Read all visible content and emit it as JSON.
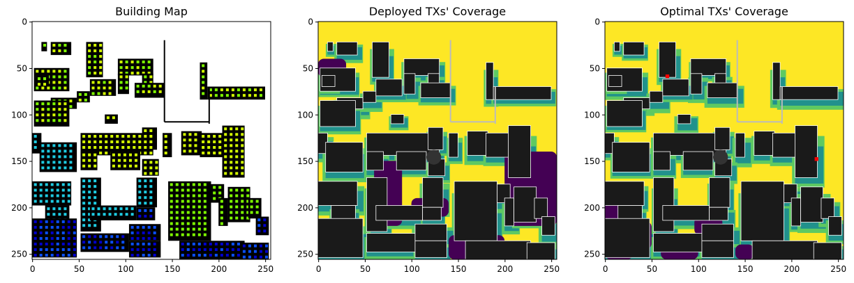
{
  "chart_data": [
    {
      "type": "heatmap",
      "title": "Building Map",
      "xticks": [
        "0",
        "50",
        "100",
        "150",
        "200",
        "250"
      ],
      "yticks": [
        "0",
        "50",
        "100",
        "150",
        "200",
        "250"
      ],
      "xlim": [
        0,
        255
      ],
      "ylim": [
        255,
        0
      ],
      "image_size": [
        256,
        256
      ],
      "background": "#ffffff",
      "building_color": "#000000",
      "tx_marker_colors": [
        "#7fff00",
        "#d4ff00",
        "#1ecbe1",
        "#0a4fff",
        "#0000cc"
      ]
    },
    {
      "type": "heatmap",
      "title": "Deployed TXs' Coverage",
      "xticks": [
        "0",
        "50",
        "100",
        "150",
        "200",
        "250"
      ],
      "yticks": [
        "0",
        "50",
        "100",
        "150",
        "200",
        "250"
      ],
      "xlim": [
        0,
        255
      ],
      "ylim": [
        255,
        0
      ],
      "image_size": [
        256,
        256
      ],
      "colormap": [
        "#440154",
        "#21918c",
        "#5ec962",
        "#fde725"
      ],
      "building_color": "#1a1a1a"
    },
    {
      "type": "heatmap",
      "title": "Optimal TXs' Coverage",
      "xticks": [
        "0",
        "50",
        "100",
        "150",
        "200",
        "250"
      ],
      "yticks": [
        "0",
        "50",
        "100",
        "150",
        "200",
        "250"
      ],
      "xlim": [
        0,
        255
      ],
      "ylim": [
        255,
        0
      ],
      "image_size": [
        256,
        256
      ],
      "colormap": [
        "#440154",
        "#21918c",
        "#5ec962",
        "#fde725"
      ],
      "building_color": "#1a1a1a",
      "optimal_tx_color": "#ff0000",
      "optimal_tx_points": [
        [
          67,
          59
        ],
        [
          227,
          148
        ]
      ]
    }
  ]
}
